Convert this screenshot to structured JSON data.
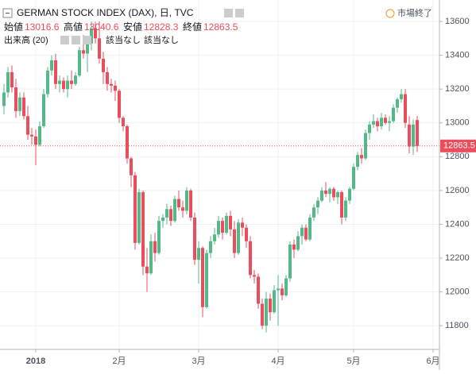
{
  "chart_data": {
    "type": "candlestick",
    "title": "GERMAN STOCK INDEX (DAX), 日, TVC",
    "ohlc_labels": [
      "始値",
      "高値",
      "安値",
      "終値"
    ],
    "volume_label": "出来高 (20)",
    "volume_values": [
      "該当なし",
      "該当なし"
    ],
    "status": "市場終了",
    "up_color": "#53b987",
    "down_color": "#eb4d5c",
    "ylim": [
      11660,
      13727
    ],
    "yticks": [
      11800,
      12000,
      12200,
      12400,
      12600,
      12800,
      13000,
      13200,
      13400,
      13600
    ],
    "xticks": [
      {
        "value": 8,
        "label": "2018"
      },
      {
        "value": 29,
        "label": "2月"
      },
      {
        "value": 49,
        "label": "3月"
      },
      {
        "value": 69,
        "label": "4月"
      },
      {
        "value": 88,
        "label": "5月"
      },
      {
        "value": 108,
        "label": "6月"
      }
    ],
    "grid": true,
    "open": [
      13100,
      13180,
      13300,
      13210,
      13070,
      13150,
      13040,
      12930,
      12920,
      12870,
      12980,
      13170,
      13310,
      13370,
      13230,
      13250,
      13200,
      13250,
      13230,
      13280,
      13430,
      13410,
      13470,
      13560,
      13500,
      13380,
      13300,
      13230,
      13220,
      13190,
      13030,
      12980,
      12790,
      12690,
      12290,
      12590,
      12150,
      12110,
      12300,
      12230,
      12420,
      12440,
      12490,
      12420,
      12550,
      12500,
      12480,
      12600,
      12440,
      12190,
      12260,
      11910,
      12230,
      12300,
      12340,
      12420,
      12350,
      12450,
      12370,
      12230,
      12410,
      12380,
      12300,
      12100,
      12090,
      11930,
      11800,
      11960,
      11880,
      12010,
      12020,
      11980,
      12080,
      12280,
      12250,
      12330,
      12380,
      12310,
      12440,
      12500,
      12540,
      12600,
      12580,
      12610,
      12560,
      12590,
      12440,
      12540,
      12610,
      12740,
      12810,
      12790,
      12940,
      12990,
      13010,
      12980,
      13030,
      13000,
      13010,
      13090,
      13140,
      13170,
      12990,
      12860,
      13016.6
    ],
    "high": [
      13230,
      13330,
      13340,
      13260,
      13180,
      13180,
      13100,
      12970,
      12960,
      13010,
      13200,
      13330,
      13400,
      13410,
      13280,
      13270,
      13280,
      13310,
      13300,
      13450,
      13520,
      13490,
      13600,
      13597,
      13600,
      13420,
      13330,
      13260,
      13250,
      13200,
      13040,
      12990,
      12800,
      12710,
      12610,
      12600,
      12260,
      12340,
      12350,
      12450,
      12460,
      12520,
      12510,
      12570,
      12600,
      12540,
      12620,
      12610,
      12470,
      12300,
      12270,
      12250,
      12330,
      12380,
      12450,
      12440,
      12470,
      12480,
      12420,
      12430,
      12440,
      12400,
      12330,
      12130,
      12110,
      11960,
      12000,
      11990,
      12040,
      12100,
      12050,
      12100,
      12300,
      12310,
      12360,
      12400,
      12400,
      12460,
      12520,
      12560,
      12620,
      12650,
      12620,
      12620,
      12600,
      12600,
      12560,
      12620,
      12760,
      12830,
      12850,
      12960,
      13010,
      13050,
      13030,
      13060,
      13050,
      13040,
      13110,
      13150,
      13200,
      13200,
      13040,
      13020,
      13040.6
    ],
    "low": [
      13050,
      13150,
      13180,
      13030,
      13040,
      13020,
      12900,
      12870,
      12750,
      12860,
      12970,
      13150,
      13280,
      13200,
      13180,
      13180,
      13150,
      13200,
      13220,
      13270,
      13380,
      13300,
      13430,
      13470,
      13350,
      13230,
      13190,
      13180,
      13130,
      13000,
      12950,
      12760,
      12620,
      12250,
      12280,
      12100,
      12000,
      12100,
      12180,
      12220,
      12380,
      12400,
      12390,
      12410,
      12480,
      12440,
      12460,
      12420,
      12160,
      12050,
      11850,
      11900,
      12200,
      12280,
      12320,
      12310,
      12340,
      12330,
      12200,
      12220,
      12330,
      12260,
      12080,
      12050,
      11900,
      11780,
      11760,
      11830,
      11870,
      11800,
      11950,
      11970,
      12060,
      12200,
      12240,
      12280,
      12300,
      12300,
      12420,
      12460,
      12530,
      12560,
      12530,
      12540,
      12520,
      12400,
      12420,
      12520,
      12600,
      12720,
      12760,
      12780,
      12900,
      12970,
      12950,
      12960,
      12990,
      12950,
      13000,
      13060,
      13120,
      12970,
      12820,
      12810,
      12828.3
    ],
    "close": [
      13180,
      13300,
      13210,
      13070,
      13150,
      13040,
      12930,
      12920,
      12870,
      12980,
      13170,
      13310,
      13370,
      13230,
      13250,
      13200,
      13250,
      13230,
      13280,
      13430,
      13410,
      13470,
      13560,
      13500,
      13380,
      13300,
      13230,
      13220,
      13190,
      13030,
      12980,
      12790,
      12690,
      12290,
      12590,
      12150,
      12110,
      12300,
      12230,
      12420,
      12440,
      12490,
      12420,
      12550,
      12500,
      12480,
      12600,
      12440,
      12190,
      12260,
      11910,
      12230,
      12300,
      12340,
      12420,
      12350,
      12450,
      12370,
      12230,
      12410,
      12380,
      12300,
      12100,
      12090,
      11930,
      11800,
      11960,
      11880,
      12010,
      12020,
      11980,
      12080,
      12280,
      12250,
      12330,
      12380,
      12310,
      12440,
      12500,
      12540,
      12600,
      12580,
      12610,
      12560,
      12590,
      12440,
      12540,
      12610,
      12740,
      12810,
      12790,
      12940,
      12990,
      13010,
      12980,
      13030,
      13000,
      13010,
      13090,
      13140,
      13170,
      13000,
      12860,
      12990,
      12863.5
    ]
  }
}
